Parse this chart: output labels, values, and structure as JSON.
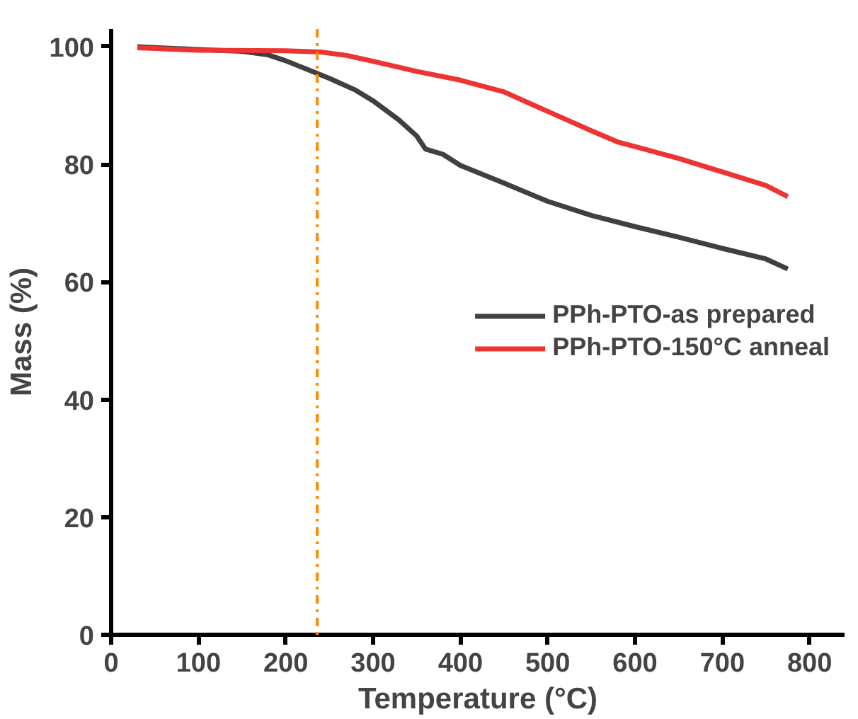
{
  "chart_data": {
    "type": "line",
    "xlabel": "Temperature (°C)",
    "ylabel": "Mass (%)",
    "xlim": [
      0,
      840
    ],
    "ylim": [
      0,
      103
    ],
    "xticks": [
      0,
      100,
      200,
      300,
      400,
      500,
      600,
      700,
      800
    ],
    "yticks": [
      0,
      20,
      40,
      60,
      80,
      100
    ],
    "grid": false,
    "legend": "right",
    "line_style": "solid",
    "marker": "none",
    "series": [
      {
        "name": "PPh-PTO-as prepared",
        "color": "#404040",
        "x": [
          30,
          100,
          150,
          180,
          200,
          230,
          250,
          280,
          300,
          330,
          350,
          360,
          380,
          400,
          450,
          500,
          550,
          600,
          650,
          700,
          750,
          775
        ],
        "values": [
          100,
          99.5,
          99.2,
          98.6,
          97.6,
          95.8,
          94.6,
          92.6,
          90.8,
          87.5,
          84.8,
          82.6,
          81.7,
          79.8,
          76.8,
          73.7,
          71.3,
          69.4,
          67.6,
          65.7,
          63.9,
          62.2
        ]
      },
      {
        "name": "PPh-PTO-150°C anneal",
        "color": "#ee3333",
        "x": [
          30,
          100,
          200,
          240,
          270,
          300,
          350,
          400,
          450,
          500,
          550,
          580,
          600,
          650,
          700,
          750,
          775
        ],
        "values": [
          99.8,
          99.4,
          99.3,
          99.1,
          98.5,
          97.5,
          95.8,
          94.3,
          92.3,
          89.0,
          85.7,
          83.8,
          83.0,
          81.0,
          78.7,
          76.4,
          74.5
        ]
      }
    ],
    "ref_lines": [
      {
        "axis": "x",
        "value": 236,
        "color": "#ff8c00",
        "line_style": "dashdot"
      }
    ]
  }
}
